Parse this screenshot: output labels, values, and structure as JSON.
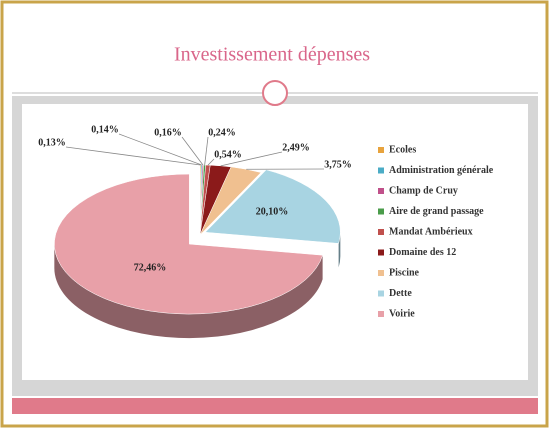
{
  "chart_data": {
    "type": "pie",
    "title": "Investissement dépenses",
    "categories": [
      "Ecoles",
      "Administration générale",
      "Champ de Cruy",
      "Aire de grand passage",
      "Mandat Ambérieux",
      "Domaine des 12",
      "Piscine",
      "Dette",
      "Voirie"
    ],
    "values": [
      0.13,
      0.14,
      0.16,
      0.24,
      0.54,
      2.49,
      3.75,
      20.1,
      72.46
    ],
    "value_labels": [
      "0,13%",
      "0,14%",
      "0,16%",
      "0,24%",
      "0,54%",
      "2,49%",
      "3,75%",
      "20,10%",
      "72,46%"
    ],
    "colors": [
      "#e8a33d",
      "#4bacc6",
      "#c0508a",
      "#4a9c4a",
      "#c0504d",
      "#8b1a1a",
      "#f0c090",
      "#a8d4e2",
      "#e8a0a8"
    ],
    "legend": "right"
  }
}
